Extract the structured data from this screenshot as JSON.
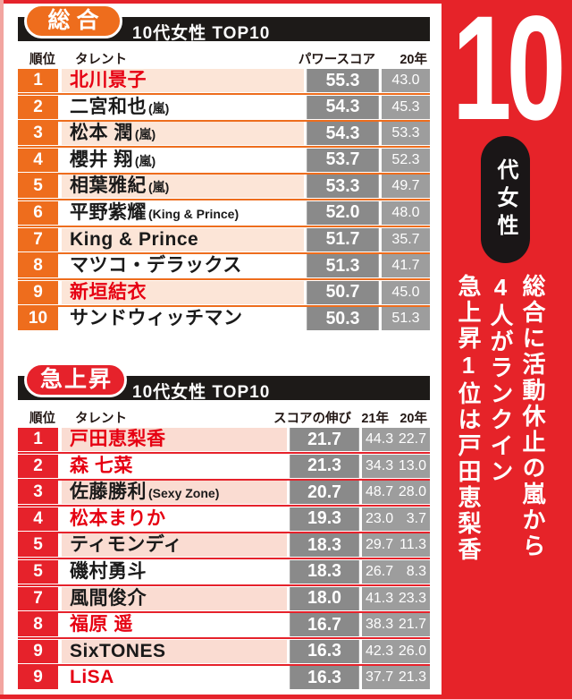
{
  "panel": {
    "bg_color": "#e62329",
    "big_number": "10",
    "pill_label": "代女性",
    "headline_lines": [
      "総合に活動休止の嵐から",
      "4人がランクイン",
      "急上昇1位は戸田恵梨香"
    ]
  },
  "colors": {
    "overall_accent": "#ee6d1d",
    "rising_accent": "#e6222b",
    "score_cell": "#8a8a8a",
    "prev_cell": "#9d9d9d",
    "red_name": "#e60012"
  },
  "overall": {
    "badge": "総合",
    "title": "10代女性 TOP10",
    "headers": {
      "rank": "順位",
      "name": "タレント",
      "score": "パワースコア",
      "prev1": "20年"
    },
    "rows": [
      {
        "rank": "1",
        "name": "北川景子",
        "suffix": "",
        "red": true,
        "score": "55.3",
        "vals": [
          "43.0"
        ]
      },
      {
        "rank": "2",
        "name": "二宮和也",
        "suffix": "(嵐)",
        "red": false,
        "score": "54.3",
        "vals": [
          "45.3"
        ]
      },
      {
        "rank": "3",
        "name": "松本 潤",
        "suffix": "(嵐)",
        "red": false,
        "score": "54.3",
        "vals": [
          "53.3"
        ]
      },
      {
        "rank": "4",
        "name": "櫻井 翔",
        "suffix": "(嵐)",
        "red": false,
        "score": "53.7",
        "vals": [
          "52.3"
        ]
      },
      {
        "rank": "5",
        "name": "相葉雅紀",
        "suffix": "(嵐)",
        "red": false,
        "score": "53.3",
        "vals": [
          "49.7"
        ]
      },
      {
        "rank": "6",
        "name": "平野紫耀",
        "suffix": "(King & Prince)",
        "red": false,
        "score": "52.0",
        "vals": [
          "48.0"
        ]
      },
      {
        "rank": "7",
        "name": "King & Prince",
        "suffix": "",
        "red": false,
        "score": "51.7",
        "vals": [
          "35.7"
        ]
      },
      {
        "rank": "8",
        "name": "マツコ・デラックス",
        "suffix": "",
        "red": false,
        "score": "51.3",
        "vals": [
          "41.7"
        ]
      },
      {
        "rank": "9",
        "name": "新垣結衣",
        "suffix": "",
        "red": true,
        "score": "50.7",
        "vals": [
          "45.0"
        ]
      },
      {
        "rank": "10",
        "name": "サンドウィッチマン",
        "suffix": "",
        "red": false,
        "score": "50.3",
        "vals": [
          "51.3"
        ]
      }
    ]
  },
  "rising": {
    "badge": "急上昇",
    "title": "10代女性 TOP10",
    "headers": {
      "rank": "順位",
      "name": "タレント",
      "score": "スコアの伸び",
      "prev1": "21年",
      "prev2": "20年"
    },
    "rows": [
      {
        "rank": "1",
        "name": "戸田恵梨香",
        "suffix": "",
        "red": true,
        "score": "21.7",
        "vals": [
          "44.3",
          "22.7"
        ]
      },
      {
        "rank": "2",
        "name": "森 七菜",
        "suffix": "",
        "red": true,
        "score": "21.3",
        "vals": [
          "34.3",
          "13.0"
        ]
      },
      {
        "rank": "3",
        "name": "佐藤勝利",
        "suffix": "(Sexy Zone)",
        "red": false,
        "score": "20.7",
        "vals": [
          "48.7",
          "28.0"
        ]
      },
      {
        "rank": "4",
        "name": "松本まりか",
        "suffix": "",
        "red": true,
        "score": "19.3",
        "vals": [
          "23.0",
          "3.7"
        ]
      },
      {
        "rank": "5",
        "name": "ティモンディ",
        "suffix": "",
        "red": false,
        "score": "18.3",
        "vals": [
          "29.7",
          "11.3"
        ]
      },
      {
        "rank": "5",
        "name": "磯村勇斗",
        "suffix": "",
        "red": false,
        "score": "18.3",
        "vals": [
          "26.7",
          "8.3"
        ]
      },
      {
        "rank": "7",
        "name": "風間俊介",
        "suffix": "",
        "red": false,
        "score": "18.0",
        "vals": [
          "41.3",
          "23.3"
        ]
      },
      {
        "rank": "8",
        "name": "福原 遥",
        "suffix": "",
        "red": true,
        "score": "16.7",
        "vals": [
          "38.3",
          "21.7"
        ]
      },
      {
        "rank": "9",
        "name": "SixTONES",
        "suffix": "",
        "red": false,
        "score": "16.3",
        "vals": [
          "42.3",
          "26.0"
        ]
      },
      {
        "rank": "9",
        "name": "LiSA",
        "suffix": "",
        "red": true,
        "score": "16.3",
        "vals": [
          "37.7",
          "21.3"
        ]
      }
    ]
  },
  "chart_data": [
    {
      "type": "table",
      "title": "総合 10代女性 TOP10",
      "columns": [
        "順位",
        "タレント",
        "パワースコア",
        "20年"
      ],
      "rows": [
        [
          "1",
          "北川景子",
          55.3,
          43.0
        ],
        [
          "2",
          "二宮和也(嵐)",
          54.3,
          45.3
        ],
        [
          "3",
          "松本 潤(嵐)",
          54.3,
          53.3
        ],
        [
          "4",
          "櫻井 翔(嵐)",
          53.7,
          52.3
        ],
        [
          "5",
          "相葉雅紀(嵐)",
          53.3,
          49.7
        ],
        [
          "6",
          "平野紫耀(King & Prince)",
          52.0,
          48.0
        ],
        [
          "7",
          "King & Prince",
          51.7,
          35.7
        ],
        [
          "8",
          "マツコ・デラックス",
          51.3,
          41.7
        ],
        [
          "9",
          "新垣結衣",
          50.7,
          45.0
        ],
        [
          "10",
          "サンドウィッチマン",
          50.3,
          51.3
        ]
      ]
    },
    {
      "type": "table",
      "title": "急上昇 10代女性 TOP10",
      "columns": [
        "順位",
        "タレント",
        "スコアの伸び",
        "21年",
        "20年"
      ],
      "rows": [
        [
          "1",
          "戸田恵梨香",
          21.7,
          44.3,
          22.7
        ],
        [
          "2",
          "森 七菜",
          21.3,
          34.3,
          13.0
        ],
        [
          "3",
          "佐藤勝利(Sexy Zone)",
          20.7,
          48.7,
          28.0
        ],
        [
          "4",
          "松本まりか",
          19.3,
          23.0,
          3.7
        ],
        [
          "5",
          "ティモンディ",
          18.3,
          29.7,
          11.3
        ],
        [
          "5",
          "磯村勇斗",
          18.3,
          26.7,
          8.3
        ],
        [
          "7",
          "風間俊介",
          18.0,
          41.3,
          23.3
        ],
        [
          "8",
          "福原 遥",
          16.7,
          38.3,
          21.7
        ],
        [
          "9",
          "SixTONES",
          16.3,
          42.3,
          26.0
        ],
        [
          "9",
          "LiSA",
          16.3,
          37.7,
          21.3
        ]
      ]
    }
  ]
}
